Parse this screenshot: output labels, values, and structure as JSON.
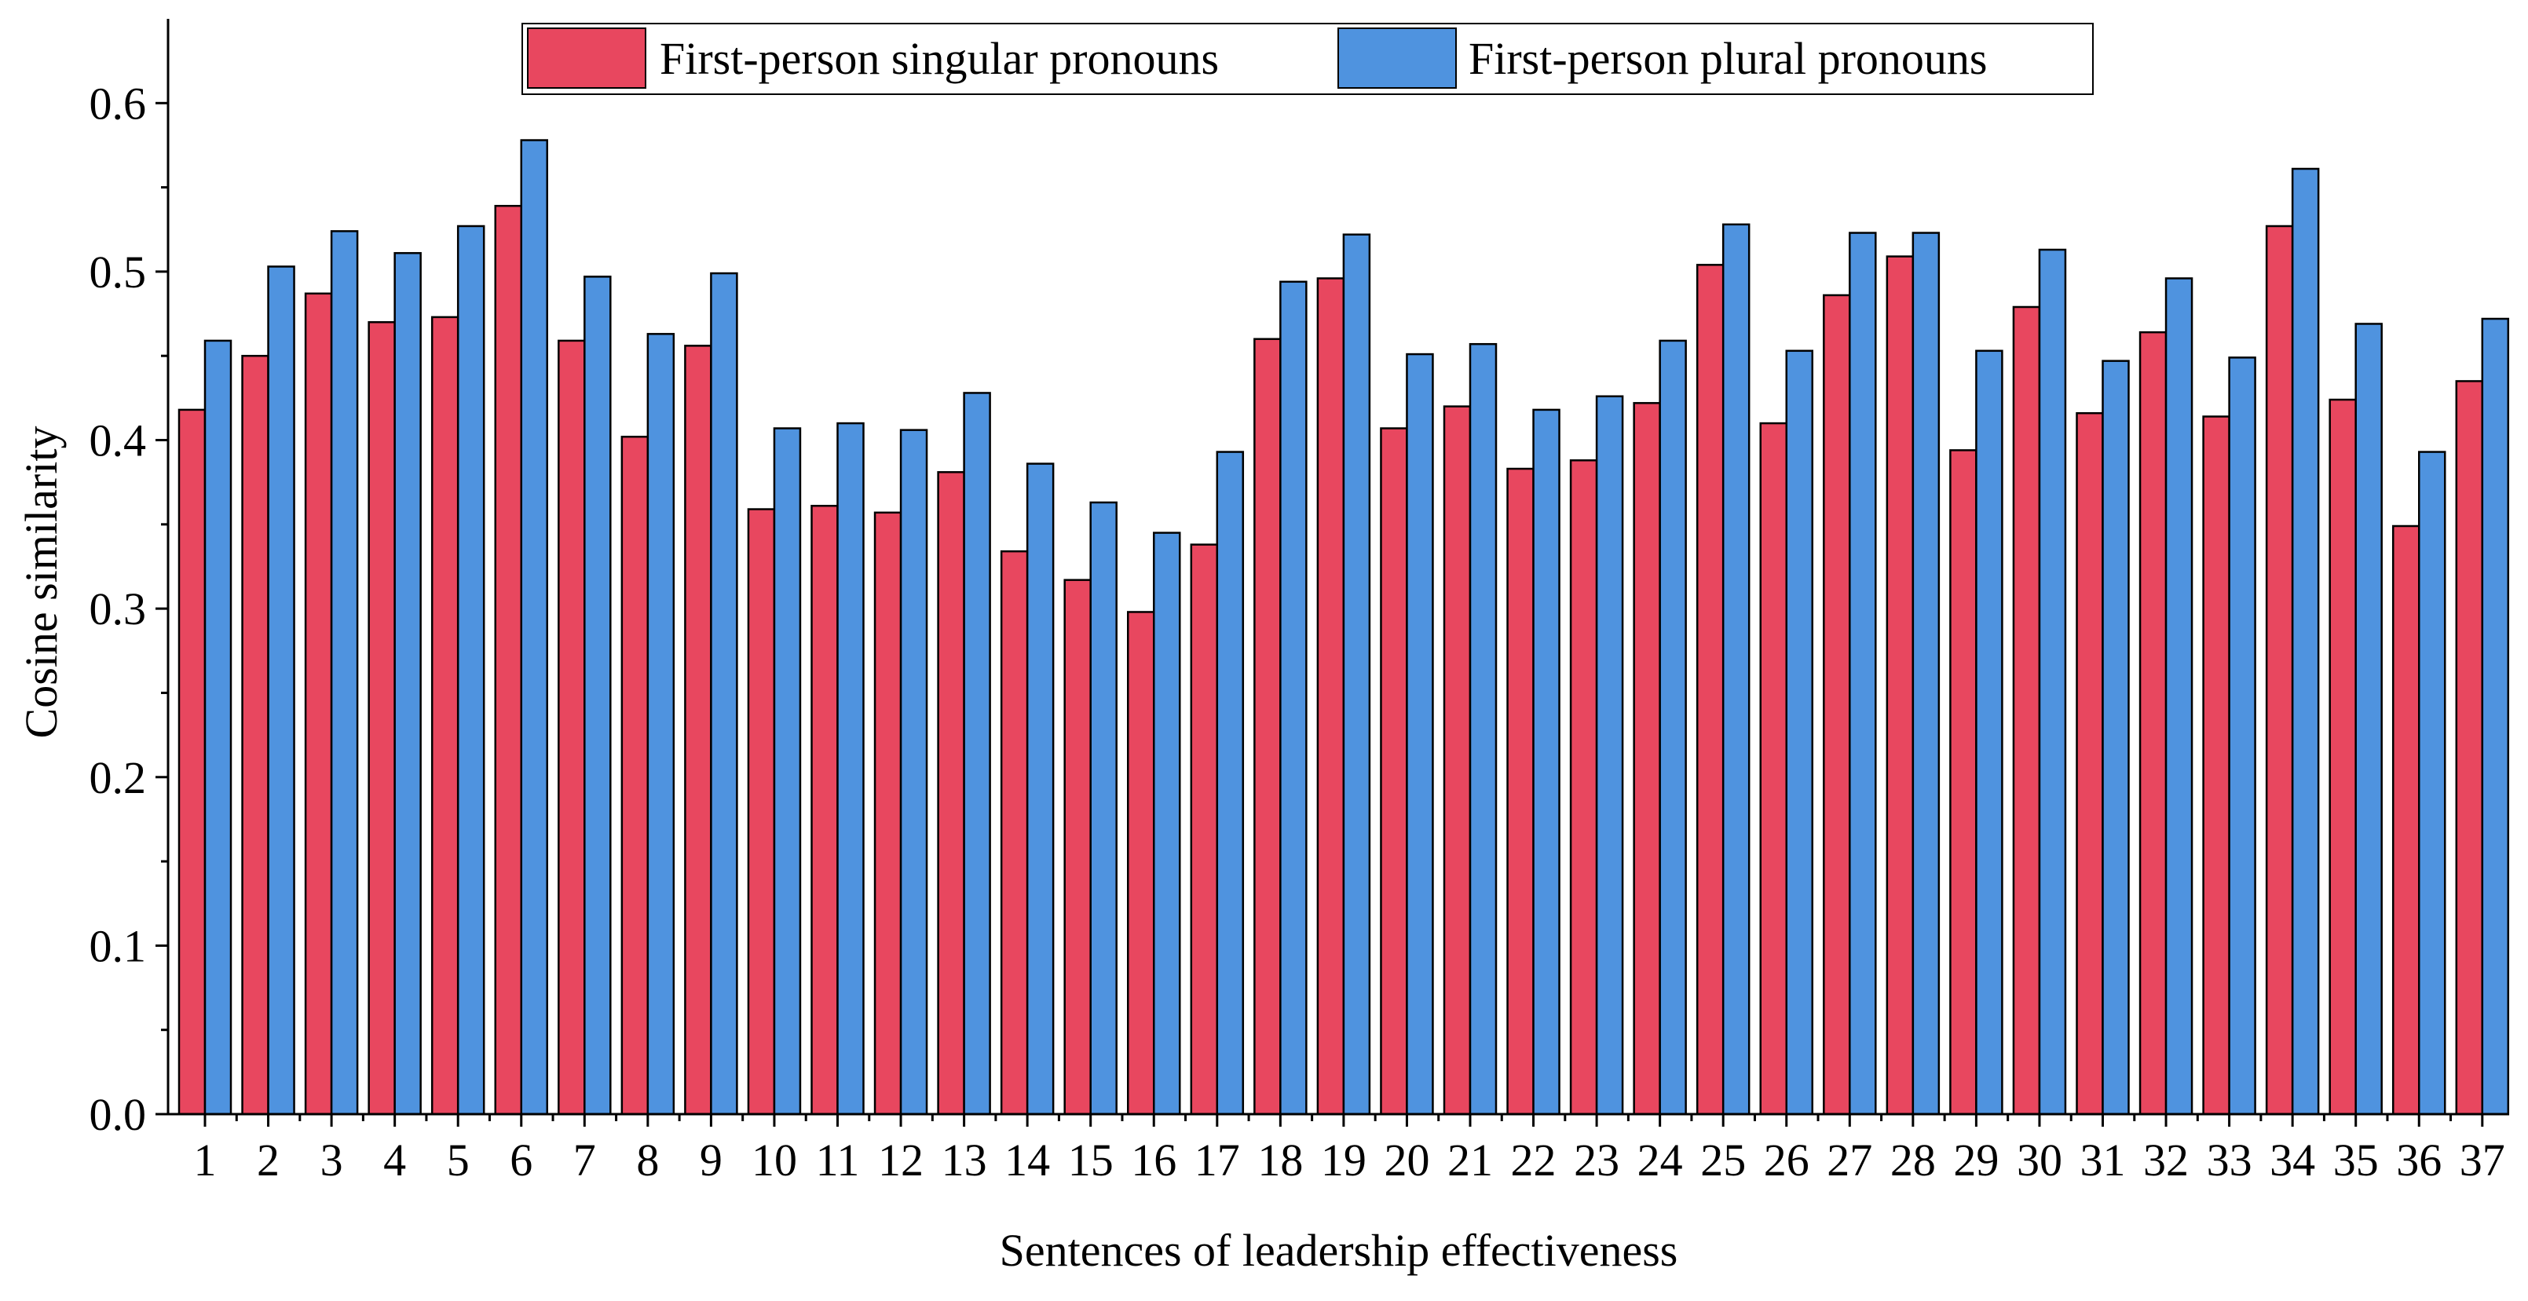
{
  "chart_data": {
    "type": "bar",
    "title": "",
    "xlabel": "Sentences of leadership effectiveness",
    "ylabel": "Cosine similarity",
    "ylim": [
      0,
      0.65
    ],
    "yticks": [
      0.0,
      0.1,
      0.2,
      0.3,
      0.4,
      0.5,
      0.6
    ],
    "ytick_labels": [
      "0.0",
      "0.1",
      "0.2",
      "0.3",
      "0.4",
      "0.5",
      "0.6"
    ],
    "grid": false,
    "legend_position": "top-center",
    "categories": [
      "1",
      "2",
      "3",
      "4",
      "5",
      "6",
      "7",
      "8",
      "9",
      "10",
      "11",
      "12",
      "13",
      "14",
      "15",
      "16",
      "17",
      "18",
      "19",
      "20",
      "21",
      "22",
      "23",
      "24",
      "25",
      "26",
      "27",
      "28",
      "29",
      "30",
      "31",
      "32",
      "33",
      "34",
      "35",
      "36",
      "37"
    ],
    "series": [
      {
        "name": "First-person singular pronouns",
        "color": "#e8475f",
        "values": [
          0.418,
          0.45,
          0.487,
          0.47,
          0.473,
          0.539,
          0.459,
          0.402,
          0.456,
          0.359,
          0.361,
          0.357,
          0.381,
          0.334,
          0.317,
          0.298,
          0.338,
          0.46,
          0.496,
          0.407,
          0.42,
          0.383,
          0.388,
          0.422,
          0.504,
          0.41,
          0.486,
          0.509,
          0.394,
          0.479,
          0.416,
          0.464,
          0.414,
          0.527,
          0.424,
          0.349,
          0.435
        ]
      },
      {
        "name": "First-person plural pronouns",
        "color": "#4f93df",
        "values": [
          0.459,
          0.503,
          0.524,
          0.511,
          0.527,
          0.578,
          0.497,
          0.463,
          0.499,
          0.407,
          0.41,
          0.406,
          0.428,
          0.386,
          0.363,
          0.345,
          0.393,
          0.494,
          0.522,
          0.451,
          0.457,
          0.418,
          0.426,
          0.459,
          0.528,
          0.453,
          0.523,
          0.523,
          0.453,
          0.513,
          0.447,
          0.496,
          0.449,
          0.561,
          0.469,
          0.393,
          0.472
        ]
      }
    ]
  }
}
